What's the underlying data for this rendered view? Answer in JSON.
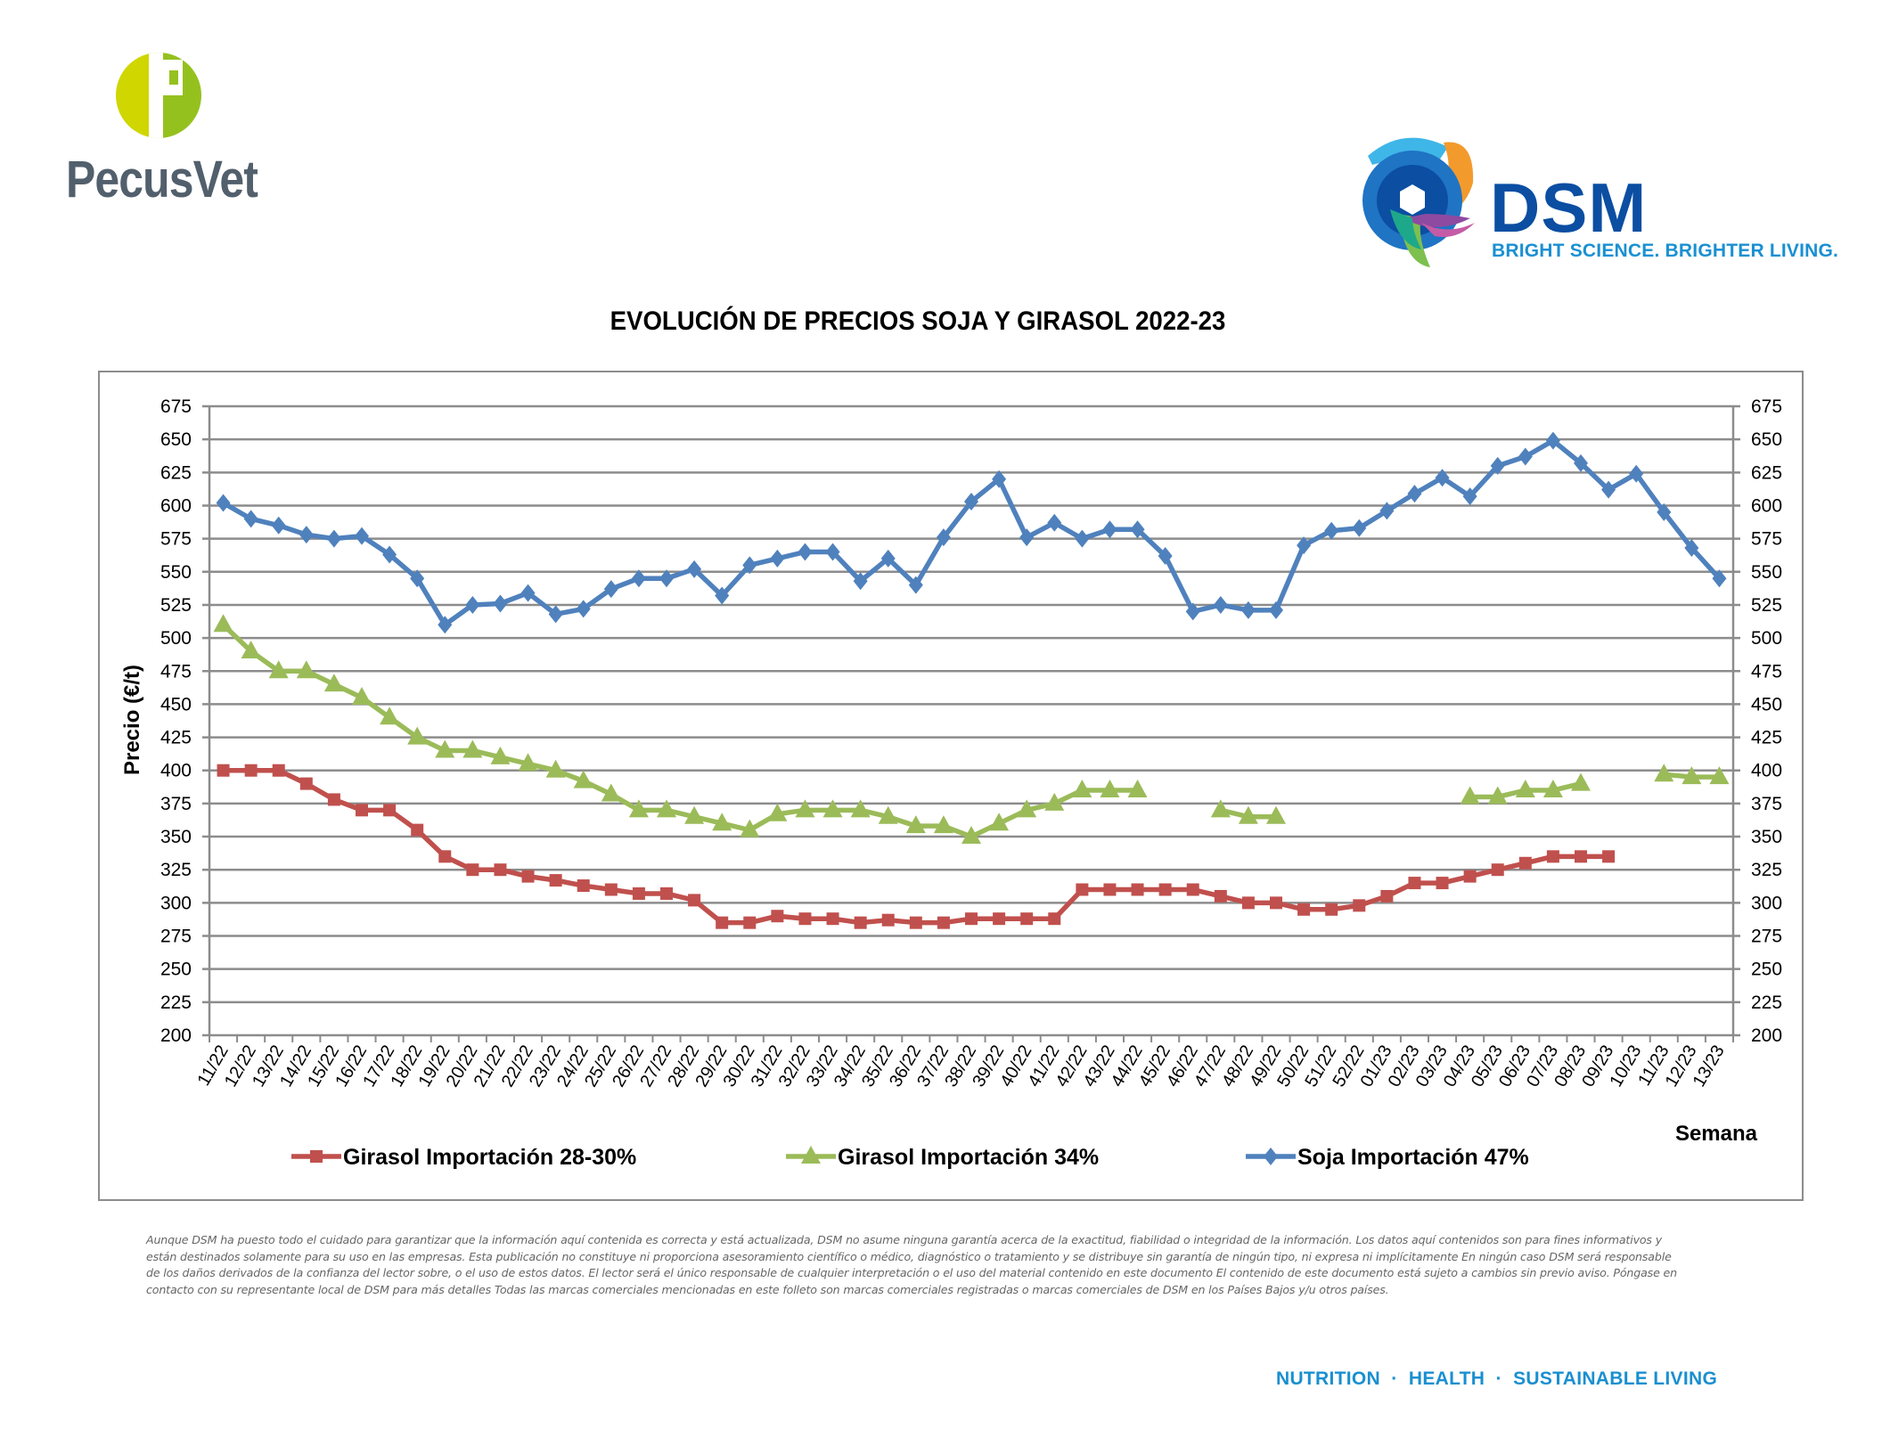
{
  "logos": {
    "left_brand": "PecusVet",
    "left_icon": "pecusvet-p-logo",
    "right_brand": "DSM",
    "right_tagline": "BRIGHT SCIENCE. BRIGHTER LIVING.",
    "right_icon": "dsm-swirl-logo"
  },
  "colors": {
    "pecus_green_light": "#cfd600",
    "pecus_green": "#95c11f",
    "pecus_gray": "#525f6c",
    "dsm_blue": "#0b4ea2",
    "dsm_light_blue": "#1a90d2",
    "series_red": "#c0504d",
    "series_green": "#9bbb59",
    "series_blue": "#4f81bd",
    "grid": "#8c8c8c"
  },
  "chart_data": {
    "type": "line",
    "title": "EVOLUCIÓN DE PRECIOS SOJA Y GIRASOL 2022-23",
    "xlabel": "Semana",
    "ylabel": "Precio (€/t)",
    "ylim": [
      200,
      675
    ],
    "ytick_step": 25,
    "yticks": [
      200,
      225,
      250,
      275,
      300,
      325,
      350,
      375,
      400,
      425,
      450,
      475,
      500,
      525,
      550,
      575,
      600,
      625,
      650,
      675
    ],
    "secondary_axis": "mirror",
    "grid": "horizontal",
    "legend_position": "bottom",
    "categories": [
      "11/22",
      "12/22",
      "13/22",
      "14/22",
      "15/22",
      "16/22",
      "17/22",
      "18/22",
      "19/22",
      "20/22",
      "21/22",
      "22/22",
      "23/22",
      "24/22",
      "25/22",
      "26/22",
      "27/22",
      "28/22",
      "29/22",
      "30/22",
      "31/22",
      "32/22",
      "33/22",
      "34/22",
      "35/22",
      "36/22",
      "37/22",
      "38/22",
      "39/22",
      "40/22",
      "41/22",
      "42/22",
      "43/22",
      "44/22",
      "45/22",
      "46/22",
      "47/22",
      "48/22",
      "49/22",
      "50/22",
      "51/22",
      "52/22",
      "01/23",
      "02/23",
      "03/23",
      "04/23",
      "05/23",
      "06/23",
      "07/23",
      "08/23",
      "09/23",
      "10/23",
      "11/23",
      "12/23",
      "13/23"
    ],
    "series": [
      {
        "name": "Girasol Importación 28-30%",
        "marker": "square",
        "color": "#c0504d",
        "values": [
          400,
          400,
          400,
          390,
          378,
          370,
          370,
          355,
          335,
          325,
          325,
          320,
          317,
          313,
          310,
          307,
          307,
          302,
          285,
          285,
          290,
          288,
          288,
          285,
          287,
          285,
          285,
          288,
          288,
          288,
          288,
          310,
          310,
          310,
          310,
          310,
          305,
          300,
          300,
          295,
          295,
          298,
          305,
          315,
          315,
          320,
          325,
          330,
          335,
          335,
          335,
          null,
          null,
          null,
          null
        ]
      },
      {
        "name": "Girasol Importación 34%",
        "marker": "triangle",
        "color": "#9bbb59",
        "values": [
          510,
          490,
          475,
          475,
          465,
          455,
          440,
          425,
          415,
          415,
          410,
          405,
          400,
          392,
          382,
          370,
          370,
          365,
          360,
          355,
          367,
          370,
          370,
          370,
          365,
          358,
          358,
          350,
          360,
          370,
          375,
          385,
          385,
          385,
          null,
          null,
          370,
          365,
          365,
          null,
          null,
          null,
          null,
          null,
          null,
          380,
          380,
          385,
          385,
          390,
          null,
          null,
          397,
          395,
          395
        ]
      },
      {
        "name": "Soja Importación 47%",
        "marker": "diamond",
        "color": "#4f81bd",
        "values": [
          602,
          590,
          585,
          578,
          575,
          577,
          563,
          545,
          510,
          525,
          526,
          534,
          518,
          522,
          537,
          545,
          545,
          552,
          532,
          555,
          560,
          565,
          565,
          543,
          560,
          540,
          576,
          603,
          620,
          576,
          587,
          575,
          582,
          582,
          562,
          520,
          525,
          521,
          521,
          570,
          581,
          583,
          596,
          609,
          621,
          607,
          630,
          637,
          649,
          632,
          612,
          624,
          595,
          568,
          545
        ]
      }
    ]
  },
  "disclaimer": "Aunque DSM ha puesto todo el cuidado para garantizar que la información aquí contenida es correcta y está actualizada, DSM no asume ninguna garantía acerca de la exactitud, fiabilidad o integridad de la información. Los datos aquí contenidos son para fines informativos y están destinados solamente para su uso en las empresas. Esta publicación no constituye ni proporciona asesoramiento científico o médico, diagnóstico o tratamiento y se distribuye sin garantía de ningún tipo, ni expresa ni implícitamente En ningún caso DSM será responsable de los daños derivados de la confianza del lector sobre, o el uso de estos datos. El lector será el único responsable de cualquier interpretación o el uso del material contenido en este documento El contenido de este documento está sujeto a cambios sin previo aviso. Póngase en contacto con su representante local de DSM para más detalles Todas las marcas comerciales mencionadas en este folleto son marcas comerciales registradas o marcas comerciales de DSM en los Países Bajos y/u otros países.",
  "footer_tagline": "NUTRITION  ·  HEALTH  ·  SUSTAINABLE LIVING"
}
